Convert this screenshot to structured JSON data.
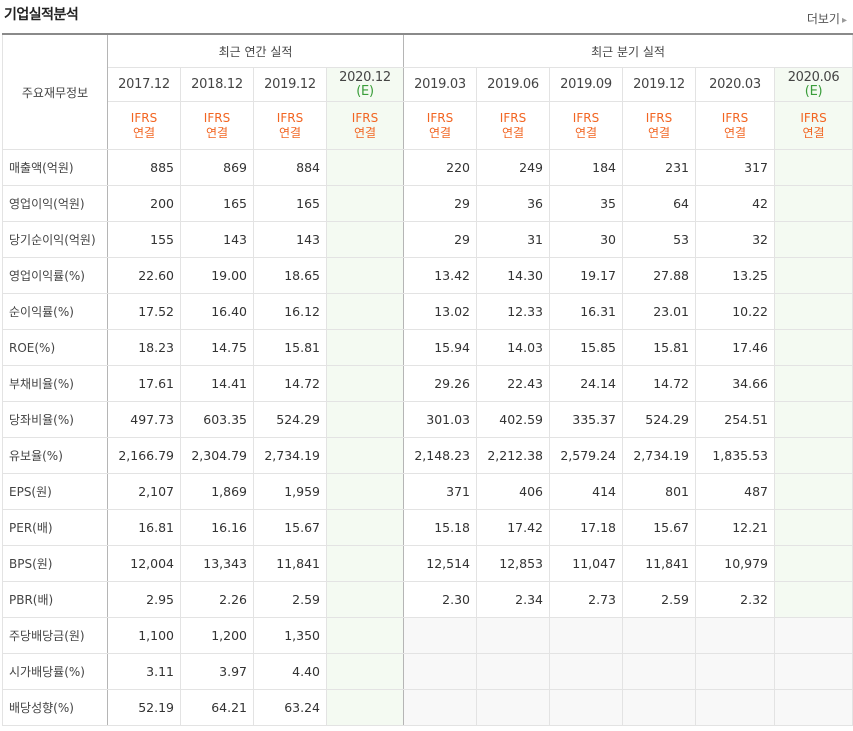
{
  "header": {
    "title": "기업실적분석",
    "more_label": "더보기"
  },
  "table": {
    "corner_label": "주요재무정보",
    "group_annual": "최근 연간 실적",
    "group_quarterly": "최근 분기 실적",
    "annual_periods": [
      "2017.12",
      "2018.12",
      "2019.12"
    ],
    "annual_estimate": {
      "period": "2020.12",
      "mark": "(E)"
    },
    "quarterly_periods": [
      "2019.03",
      "2019.06",
      "2019.09",
      "2019.12",
      "2020.03"
    ],
    "quarterly_estimate": {
      "period": "2020.06",
      "mark": "(E)"
    },
    "ifrs_line1": "IFRS",
    "ifrs_line2": "연결",
    "rows": [
      {
        "label": "매출액(억원)",
        "annual": [
          "885",
          "869",
          "884"
        ],
        "quarterly": [
          "220",
          "249",
          "184",
          "231",
          "317"
        ]
      },
      {
        "label": "영업이익(억원)",
        "annual": [
          "200",
          "165",
          "165"
        ],
        "quarterly": [
          "29",
          "36",
          "35",
          "64",
          "42"
        ]
      },
      {
        "label": "당기순이익(억원)",
        "annual": [
          "155",
          "143",
          "143"
        ],
        "quarterly": [
          "29",
          "31",
          "30",
          "53",
          "32"
        ]
      },
      {
        "label": "영업이익률(%)",
        "annual": [
          "22.60",
          "19.00",
          "18.65"
        ],
        "quarterly": [
          "13.42",
          "14.30",
          "19.17",
          "27.88",
          "13.25"
        ]
      },
      {
        "label": "순이익률(%)",
        "annual": [
          "17.52",
          "16.40",
          "16.12"
        ],
        "quarterly": [
          "13.02",
          "12.33",
          "16.31",
          "23.01",
          "10.22"
        ]
      },
      {
        "label": "ROE(%)",
        "annual": [
          "18.23",
          "14.75",
          "15.81"
        ],
        "quarterly": [
          "15.94",
          "14.03",
          "15.85",
          "15.81",
          "17.46"
        ]
      },
      {
        "label": "부채비율(%)",
        "annual": [
          "17.61",
          "14.41",
          "14.72"
        ],
        "quarterly": [
          "29.26",
          "22.43",
          "24.14",
          "14.72",
          "34.66"
        ]
      },
      {
        "label": "당좌비율(%)",
        "annual": [
          "497.73",
          "603.35",
          "524.29"
        ],
        "quarterly": [
          "301.03",
          "402.59",
          "335.37",
          "524.29",
          "254.51"
        ]
      },
      {
        "label": "유보율(%)",
        "annual": [
          "2,166.79",
          "2,304.79",
          "2,734.19"
        ],
        "quarterly": [
          "2,148.23",
          "2,212.38",
          "2,579.24",
          "2,734.19",
          "1,835.53"
        ]
      },
      {
        "label": "EPS(원)",
        "annual": [
          "2,107",
          "1,869",
          "1,959"
        ],
        "quarterly": [
          "371",
          "406",
          "414",
          "801",
          "487"
        ]
      },
      {
        "label": "PER(배)",
        "annual": [
          "16.81",
          "16.16",
          "15.67"
        ],
        "quarterly": [
          "15.18",
          "17.42",
          "17.18",
          "15.67",
          "12.21"
        ]
      },
      {
        "label": "BPS(원)",
        "annual": [
          "12,004",
          "13,343",
          "11,841"
        ],
        "quarterly": [
          "12,514",
          "12,853",
          "11,047",
          "11,841",
          "10,979"
        ]
      },
      {
        "label": "PBR(배)",
        "annual": [
          "2.95",
          "2.26",
          "2.59"
        ],
        "quarterly": [
          "2.30",
          "2.34",
          "2.73",
          "2.59",
          "2.32"
        ]
      },
      {
        "label": "주당배당금(원)",
        "annual": [
          "1,100",
          "1,200",
          "1,350"
        ],
        "quarterly": [
          "",
          "",
          "",
          "",
          ""
        ]
      },
      {
        "label": "시가배당률(%)",
        "annual": [
          "3.11",
          "3.97",
          "4.40"
        ],
        "quarterly": [
          "",
          "",
          "",
          "",
          ""
        ]
      },
      {
        "label": "배당성향(%)",
        "annual": [
          "52.19",
          "64.21",
          "63.24"
        ],
        "quarterly": [
          "",
          "",
          "",
          "",
          ""
        ]
      }
    ]
  }
}
